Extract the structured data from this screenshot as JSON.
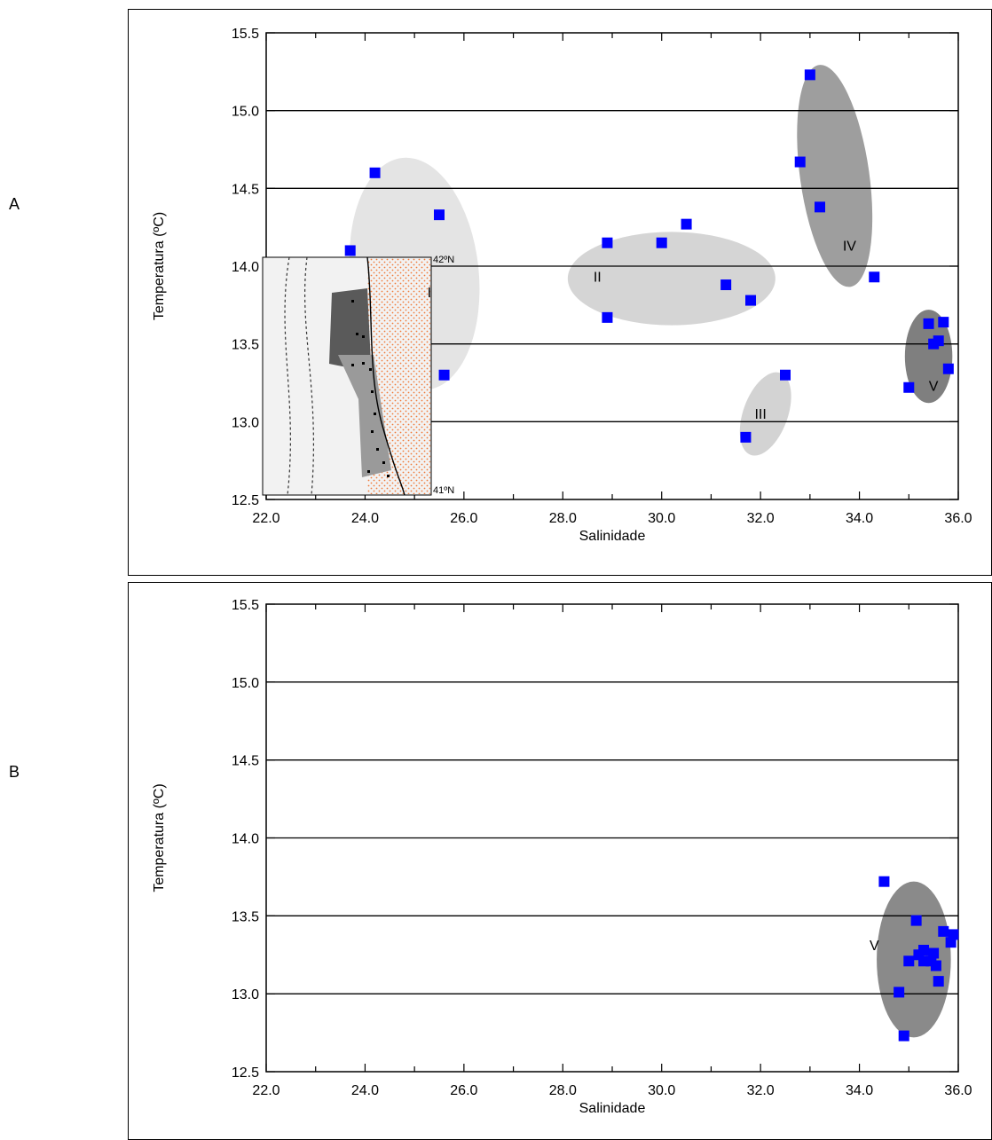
{
  "panels": [
    {
      "letter": "A"
    },
    {
      "letter": "B"
    }
  ],
  "chart_data": [
    {
      "type": "scatter",
      "panel": "A",
      "xlabel": "Salinidade",
      "ylabel": "Temperatura (ºC)",
      "xlim": [
        22.0,
        36.0
      ],
      "ylim": [
        12.5,
        15.5
      ],
      "xticks": [
        "22.0",
        "24.0",
        "26.0",
        "28.0",
        "30.0",
        "32.0",
        "34.0",
        "36.0"
      ],
      "yticks": [
        "12.5",
        "13.0",
        "13.5",
        "14.0",
        "14.5",
        "15.0",
        "15.5"
      ],
      "gridlines_y": [
        13.0,
        13.5,
        14.0,
        14.5,
        15.0
      ],
      "marker_color": "#0000ff",
      "points": [
        {
          "x": 24.2,
          "y": 14.6
        },
        {
          "x": 25.5,
          "y": 14.33
        },
        {
          "x": 23.7,
          "y": 14.1
        },
        {
          "x": 25.6,
          "y": 13.3
        },
        {
          "x": 28.9,
          "y": 14.15
        },
        {
          "x": 30.0,
          "y": 14.15
        },
        {
          "x": 30.5,
          "y": 14.27
        },
        {
          "x": 31.3,
          "y": 13.88
        },
        {
          "x": 31.8,
          "y": 13.78
        },
        {
          "x": 28.9,
          "y": 13.67
        },
        {
          "x": 32.5,
          "y": 13.3
        },
        {
          "x": 31.7,
          "y": 12.9
        },
        {
          "x": 33.0,
          "y": 15.23
        },
        {
          "x": 32.8,
          "y": 14.67
        },
        {
          "x": 33.2,
          "y": 14.38
        },
        {
          "x": 34.3,
          "y": 13.93
        },
        {
          "x": 35.4,
          "y": 13.63
        },
        {
          "x": 35.7,
          "y": 13.64
        },
        {
          "x": 35.5,
          "y": 13.5
        },
        {
          "x": 35.6,
          "y": 13.52
        },
        {
          "x": 35.8,
          "y": 13.34
        },
        {
          "x": 35.0,
          "y": 13.22
        }
      ],
      "groups": [
        {
          "label": "I",
          "color": "#e4e4e4",
          "cx": 25.0,
          "cy": 13.95,
          "rx": 1.3,
          "ry": 0.75,
          "label_x": 25.3,
          "label_y": 13.8
        },
        {
          "label": "II",
          "color": "#d5d5d5",
          "cx": 30.2,
          "cy": 13.92,
          "rx": 2.1,
          "ry": 0.3,
          "label_x": 28.7,
          "label_y": 13.9
        },
        {
          "label": "III",
          "color": "#d3d3d3",
          "cx": 32.1,
          "cy": 13.05,
          "rx": 0.45,
          "ry": 0.28,
          "label_x": 32.0,
          "label_y": 13.02
        },
        {
          "label": "IV",
          "color": "#9e9e9e",
          "cx": 33.5,
          "cy": 14.58,
          "rx": 0.7,
          "ry": 0.72,
          "label_x": 33.8,
          "label_y": 14.1
        },
        {
          "label": "V",
          "color": "#7f7f7f",
          "cx": 35.4,
          "cy": 13.42,
          "rx": 0.48,
          "ry": 0.3,
          "label_x": 35.5,
          "label_y": 13.2
        }
      ],
      "inset_map": {
        "labels": [
          "42ºN",
          "41ºN"
        ]
      }
    },
    {
      "type": "scatter",
      "panel": "B",
      "xlabel": "Salinidade",
      "ylabel": "Temperatura (ºC)",
      "xlim": [
        22.0,
        36.0
      ],
      "ylim": [
        12.5,
        15.5
      ],
      "xticks": [
        "22.0",
        "24.0",
        "26.0",
        "28.0",
        "30.0",
        "32.0",
        "34.0",
        "36.0"
      ],
      "yticks": [
        "12.5",
        "13.0",
        "13.5",
        "14.0",
        "14.5",
        "15.0",
        "15.5"
      ],
      "gridlines_y": [
        13.0,
        13.5,
        14.0,
        14.5,
        15.0
      ],
      "marker_color": "#0000ff",
      "points": [
        {
          "x": 34.5,
          "y": 13.72
        },
        {
          "x": 35.15,
          "y": 13.47
        },
        {
          "x": 35.7,
          "y": 13.4
        },
        {
          "x": 35.9,
          "y": 13.38
        },
        {
          "x": 35.85,
          "y": 13.33
        },
        {
          "x": 35.3,
          "y": 13.28
        },
        {
          "x": 35.2,
          "y": 13.25
        },
        {
          "x": 35.5,
          "y": 13.26
        },
        {
          "x": 35.3,
          "y": 13.21
        },
        {
          "x": 35.55,
          "y": 13.18
        },
        {
          "x": 35.0,
          "y": 13.21
        },
        {
          "x": 35.45,
          "y": 13.21
        },
        {
          "x": 35.6,
          "y": 13.08
        },
        {
          "x": 34.8,
          "y": 13.01
        },
        {
          "x": 34.9,
          "y": 12.73
        }
      ],
      "groups": [
        {
          "label": "V",
          "color": "#8a8a8a",
          "cx": 35.1,
          "cy": 13.22,
          "rx": 0.75,
          "ry": 0.5,
          "label_x": 34.3,
          "label_y": 13.28
        }
      ]
    }
  ]
}
